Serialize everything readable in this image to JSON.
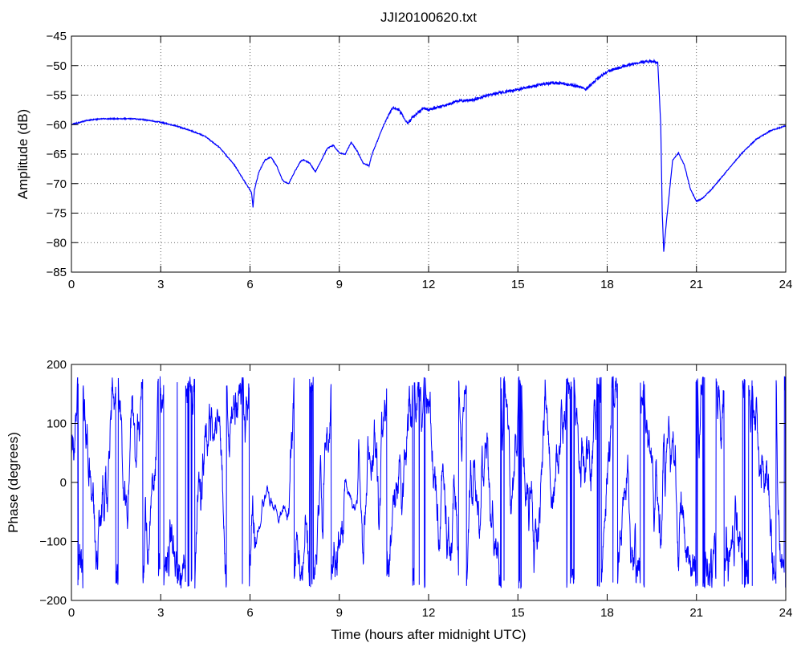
{
  "chart_data": [
    {
      "type": "line",
      "title": "JJI20100620.txt",
      "xlabel": "",
      "ylabel": "Amplitude (dB)",
      "xlim": [
        0,
        24
      ],
      "ylim": [
        -85,
        -45
      ],
      "xticks": [
        0,
        3,
        6,
        9,
        12,
        15,
        18,
        21,
        24
      ],
      "yticks": [
        -45,
        -50,
        -55,
        -60,
        -65,
        -70,
        -75,
        -80,
        -85
      ],
      "grid": true,
      "color": "#0000ff",
      "series": [
        {
          "x": [
            0,
            0.5,
            1,
            1.5,
            2,
            2.5,
            3,
            3.5,
            4,
            4.5,
            5,
            5.5,
            5.8,
            6.05,
            6.1,
            6.15,
            6.3,
            6.5,
            6.7,
            6.9,
            7.1,
            7.3,
            7.5,
            7.7,
            7.8,
            8.0,
            8.2,
            8.4,
            8.6,
            8.8,
            9.0,
            9.2,
            9.4,
            9.6,
            9.8,
            10.0,
            10.1,
            10.3,
            10.5,
            10.8,
            11.0,
            11.3,
            11.5,
            11.8,
            12.0,
            12.5,
            13.0,
            13.5,
            14.0,
            14.5,
            15.0,
            15.5,
            16.0,
            16.5,
            17.0,
            17.3,
            17.6,
            18.0,
            18.5,
            19.0,
            19.5,
            19.7,
            19.8,
            19.85,
            19.9,
            20.0,
            20.2,
            20.4,
            20.6,
            20.8,
            21.0,
            21.2,
            21.5,
            22.0,
            22.5,
            23.0,
            23.5,
            24.0
          ],
          "y": [
            -60,
            -59.3,
            -59,
            -59,
            -59,
            -59.2,
            -59.6,
            -60.2,
            -61,
            -62,
            -64,
            -67,
            -69.5,
            -71.5,
            -74,
            -71,
            -68,
            -66,
            -65.5,
            -67,
            -69.5,
            -70,
            -68,
            -66.2,
            -66,
            -66.5,
            -68,
            -66,
            -64,
            -63.5,
            -64.8,
            -65,
            -63,
            -64.5,
            -66.5,
            -67,
            -65,
            -62.5,
            -60,
            -57,
            -57.5,
            -59.8,
            -58.5,
            -57.3,
            -57.5,
            -56.8,
            -56,
            -55.8,
            -55,
            -54.5,
            -54,
            -53.5,
            -53,
            -53,
            -53.5,
            -54,
            -52.5,
            -51,
            -50.2,
            -49.5,
            -49.2,
            -49.5,
            -60,
            -75,
            -81.5,
            -76,
            -66,
            -64.8,
            -67,
            -71,
            -73,
            -72.5,
            -71,
            -68,
            -65,
            -62.5,
            -61,
            -60.2
          ]
        }
      ]
    },
    {
      "type": "line",
      "title": "",
      "xlabel": "Time (hours after midnight UTC)",
      "ylabel": "Phase (degrees)",
      "xlim": [
        0,
        24
      ],
      "ylim": [
        -200,
        200
      ],
      "xticks": [
        0,
        3,
        6,
        9,
        12,
        15,
        18,
        21,
        24
      ],
      "yticks": [
        200,
        100,
        0,
        -100,
        -200
      ],
      "grid": false,
      "color": "#0000ff",
      "series": [
        {
          "x_start": 0,
          "x_end": 24,
          "min": -180,
          "max": 180,
          "wrapped": true,
          "quiet_intervals": [
            [
              6.2,
              7.3
            ],
            [
              9.2,
              9.6
            ]
          ]
        }
      ]
    }
  ]
}
